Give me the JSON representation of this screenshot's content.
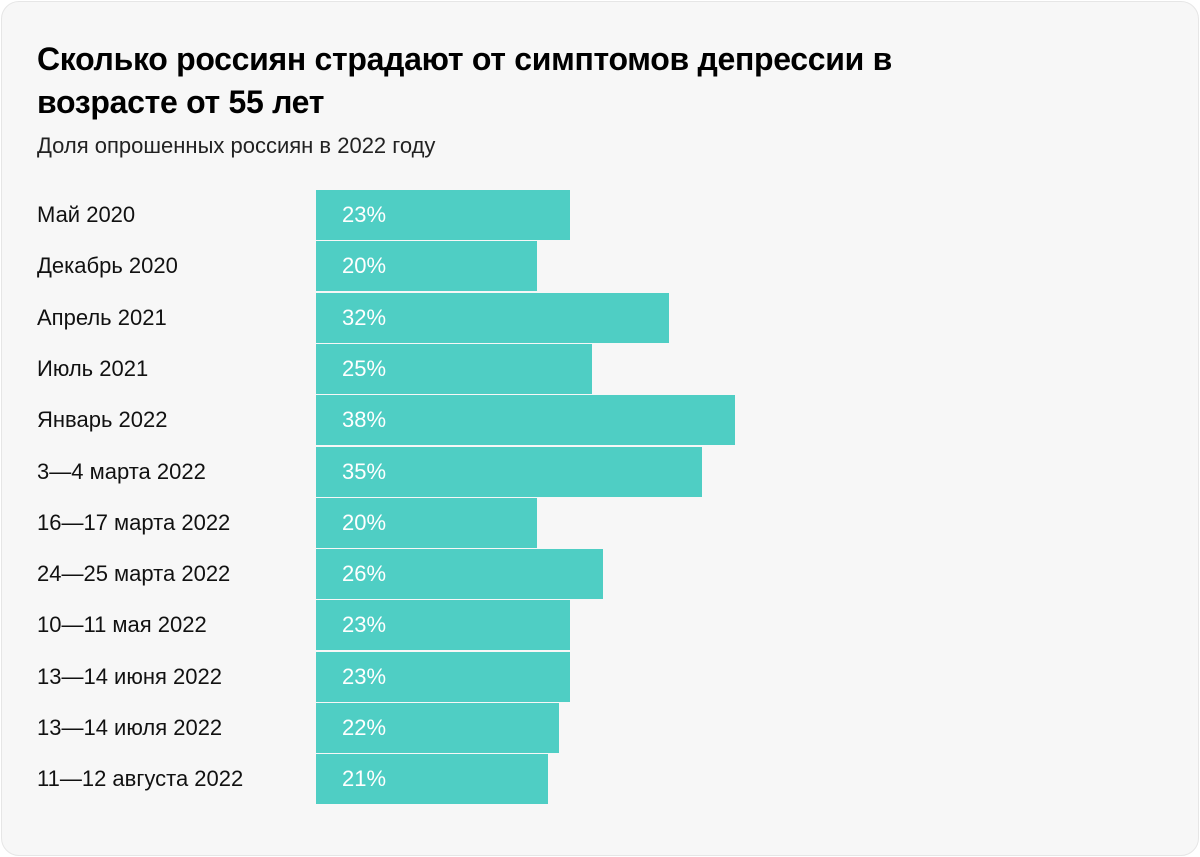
{
  "chart_data": {
    "type": "bar",
    "orientation": "horizontal",
    "title": "Сколько россиян страдают от симптомов депрессии в возрасте от 55 лет",
    "subtitle": "Доля опрошенных россиян в 2022 году",
    "categories": [
      "Май 2020",
      "Декабрь 2020",
      "Апрель 2021",
      "Июль 2021",
      "Январь 2022",
      "3—4 марта 2022",
      "16—17 марта 2022",
      "24—25 марта 2022",
      "10—11 мая 2022",
      "13—14 июня 2022",
      "13—14 июля 2022",
      "11—12 августа 2022"
    ],
    "values": [
      23,
      20,
      32,
      25,
      38,
      35,
      20,
      26,
      23,
      23,
      22,
      21
    ],
    "value_labels": [
      "23%",
      "20%",
      "32%",
      "25%",
      "38%",
      "35%",
      "20%",
      "26%",
      "23%",
      "23%",
      "22%",
      "21%"
    ],
    "unit": "%",
    "grid": false,
    "bar_color": "#4fcec4"
  }
}
